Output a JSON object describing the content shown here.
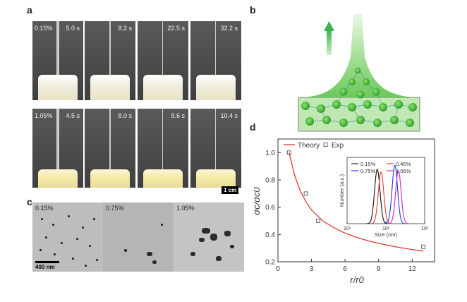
{
  "panels": {
    "a": {
      "letter": "a",
      "top_row": {
        "concentration": "0.15%",
        "times": [
          "5.0 s",
          "8.2 s",
          "22.5 s",
          "32.2 s"
        ]
      },
      "bottom_row": {
        "concentration": "1.05%",
        "times": [
          "4.5 s",
          "8.0 s",
          "9.6 s",
          "10.4 s"
        ]
      },
      "scale_bar": "1 cm"
    },
    "b": {
      "letter": "b"
    },
    "c": {
      "letter": "c",
      "images": [
        "0.15%",
        "0.75%",
        "1.05%"
      ],
      "scale_bar": "400 nm"
    },
    "d": {
      "letter": "d"
    }
  },
  "chart_data": [
    {
      "type": "scatter",
      "xlabel": "r/r0",
      "ylabel": "σc/σc0",
      "xlim": [
        0,
        14
      ],
      "ylim": [
        0.2,
        1.1
      ],
      "xticks": [
        "0",
        "3",
        "6",
        "9",
        "12"
      ],
      "yticks": [
        "0.2",
        "0.4",
        "0.6",
        "0.8",
        "1.0"
      ],
      "legend": [
        "Theory",
        "Exp"
      ],
      "legend_position": "top-left",
      "series": [
        {
          "name": "Theory",
          "style": "line",
          "color": "#e53935",
          "x": [
            1,
            1.5,
            2,
            2.5,
            3,
            4,
            5,
            6,
            7,
            8,
            9,
            10,
            11,
            12,
            13
          ],
          "y": [
            1.0,
            0.83,
            0.72,
            0.64,
            0.58,
            0.5,
            0.45,
            0.41,
            0.38,
            0.355,
            0.335,
            0.318,
            0.303,
            0.29,
            0.278
          ]
        },
        {
          "name": "Exp",
          "style": "square-marker",
          "color": "#555555",
          "x": [
            1.0,
            2.5,
            3.6,
            13.0
          ],
          "y": [
            1.0,
            0.7,
            0.5,
            0.31
          ]
        }
      ]
    },
    {
      "type": "line",
      "xlabel": "Size (nm)",
      "ylabel": "Number (a.u.)",
      "xscale": "log",
      "xlim": [
        10,
        1000
      ],
      "xticks": [
        "10¹",
        "10²",
        "10³"
      ],
      "legend": [
        "0.15%",
        "0.45%",
        "0.75%",
        "1.05%"
      ],
      "series": [
        {
          "name": "0.15%",
          "color": "#111111",
          "peak_size": 60,
          "peak": 0.82
        },
        {
          "name": "0.45%",
          "color": "#e53935",
          "peak_size": 75,
          "peak": 0.78
        },
        {
          "name": "0.75%",
          "color": "#1e3adf",
          "peak_size": 170,
          "peak": 0.88
        },
        {
          "name": "1.05%",
          "color": "#d21fd2",
          "peak_size": 210,
          "peak": 0.8
        }
      ]
    }
  ]
}
